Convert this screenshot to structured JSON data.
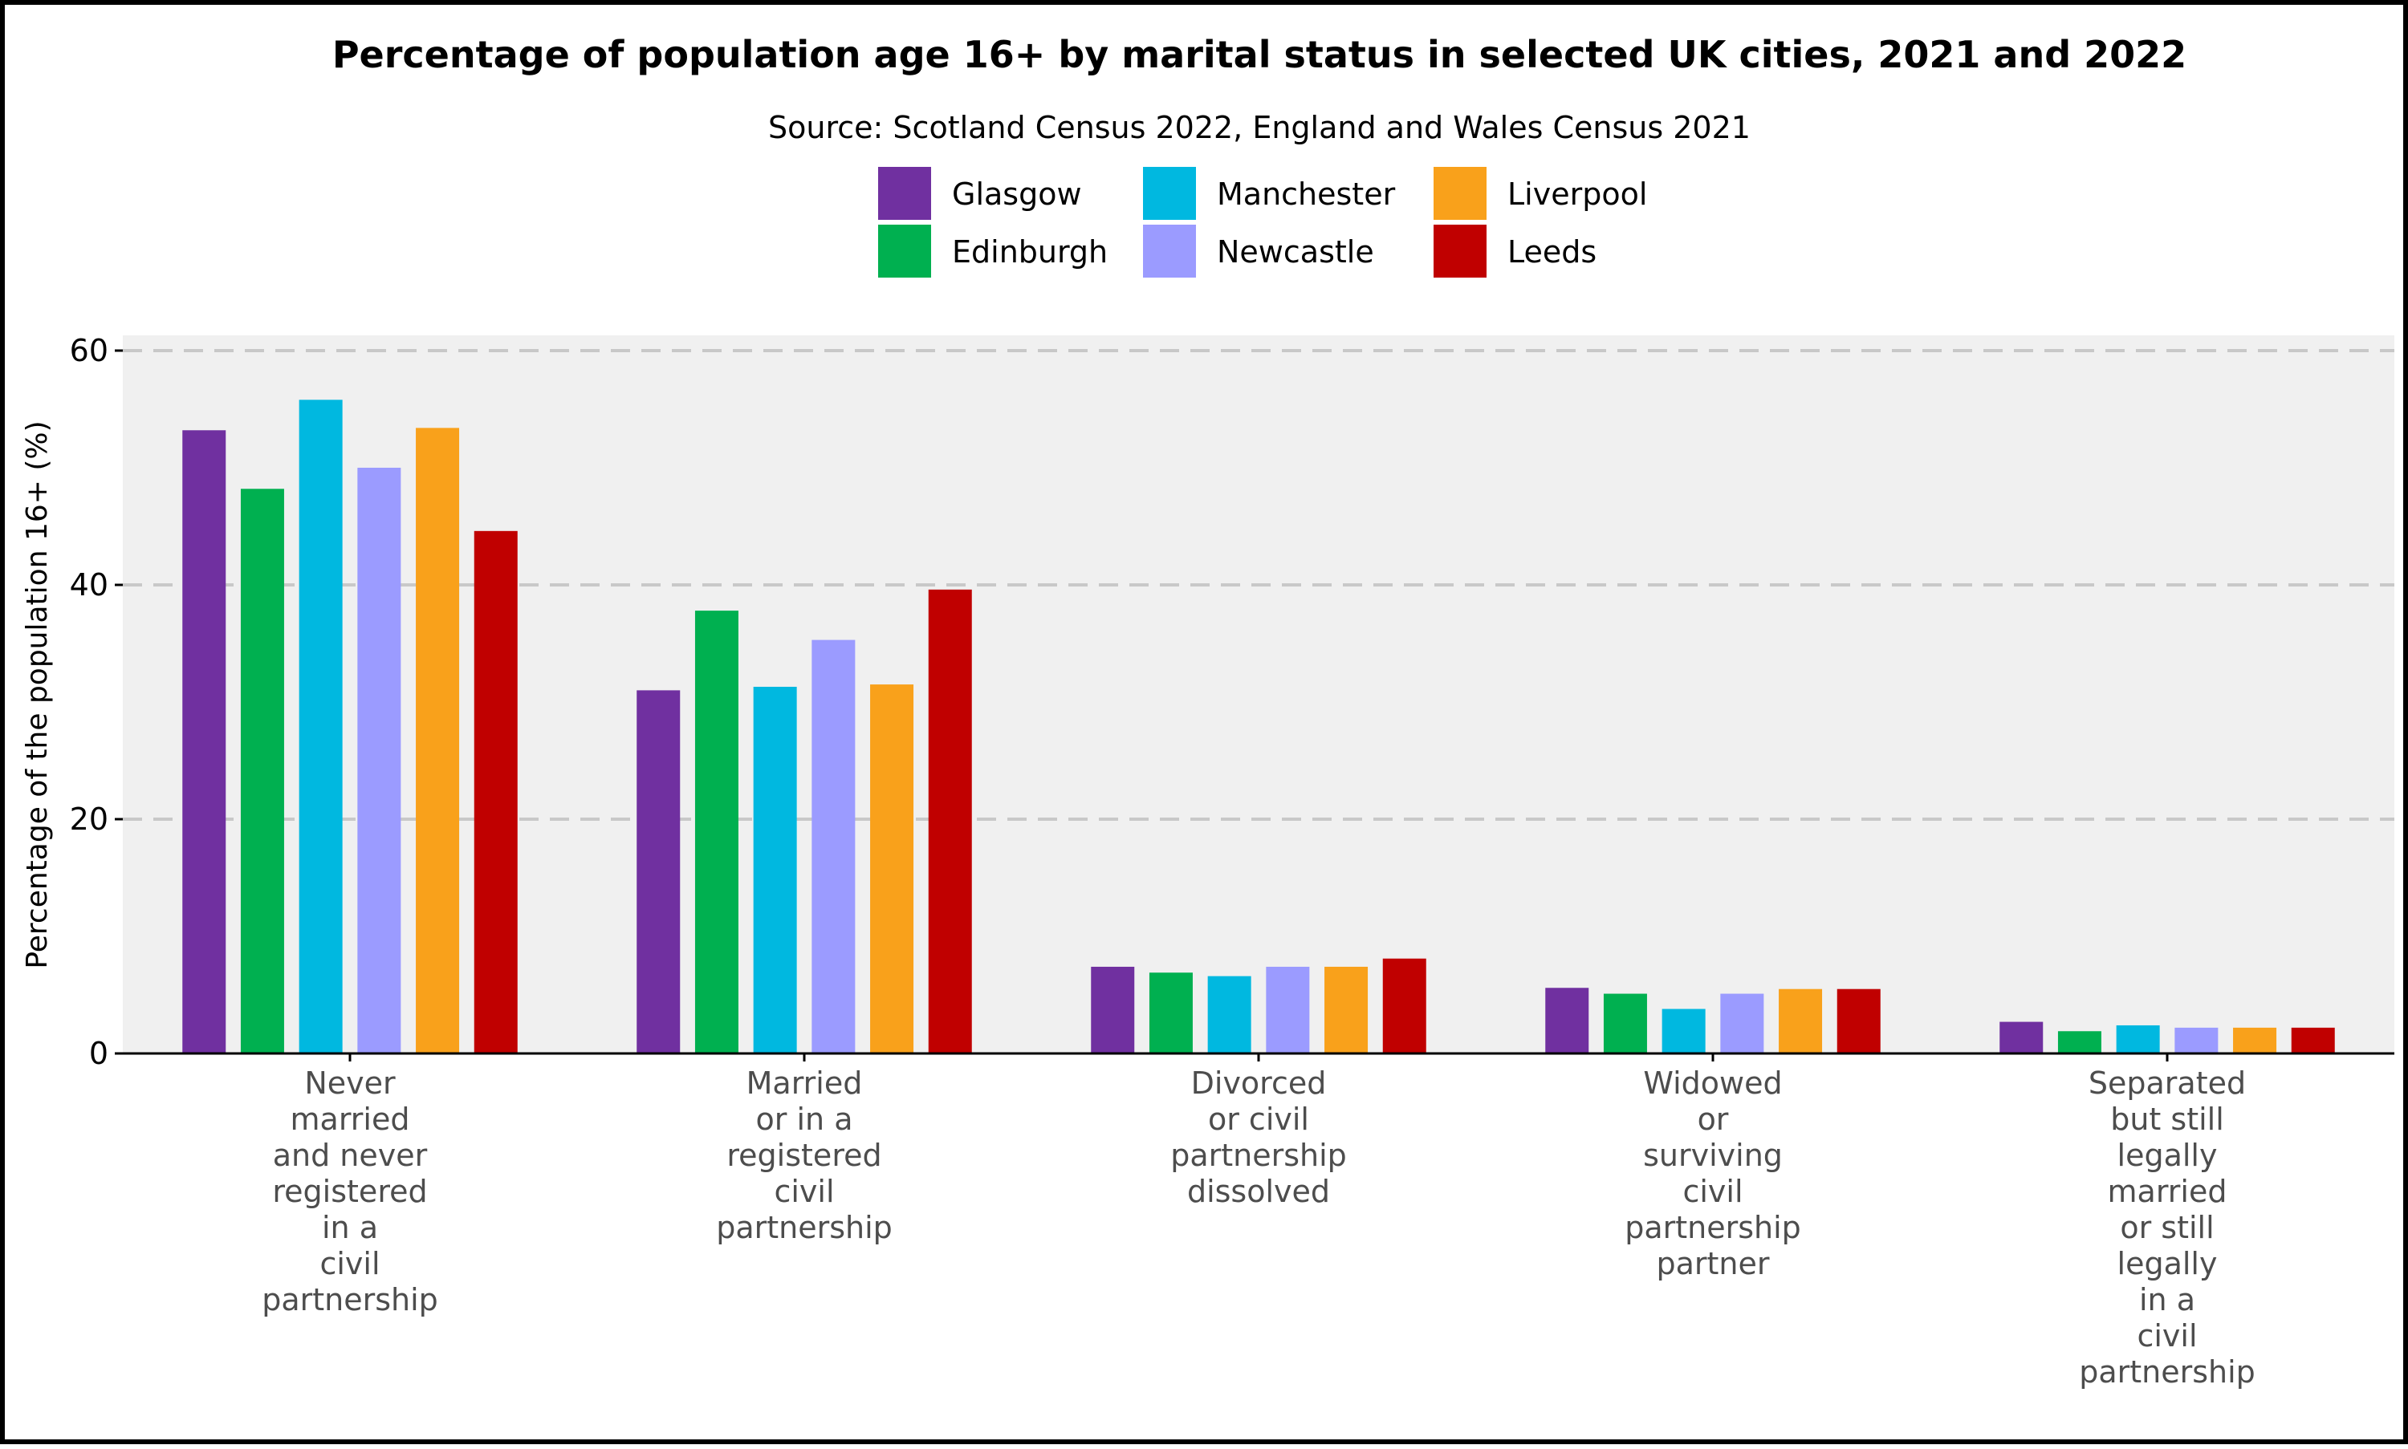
{
  "chart_data": {
    "type": "bar",
    "title": "Percentage of population age 16+ by marital status in selected UK cities, 2021 and 2022",
    "subtitle": "Source: Scotland Census 2022, England and Wales Census 2021",
    "xlabel": "",
    "ylabel": "Percentage of the population 16+ (%)",
    "ylim": [
      0,
      61.3
    ],
    "yticks": [
      0,
      20,
      40,
      60
    ],
    "grid": "horizontal dashed",
    "legend_position": "top",
    "categories": [
      [
        "Never",
        "married",
        "and never",
        "registered",
        "in a",
        "civil",
        "partnership"
      ],
      [
        "Married",
        "or in a",
        "registered",
        "civil",
        "partnership"
      ],
      [
        "Divorced",
        "or civil",
        "partnership",
        "dissolved"
      ],
      [
        "Widowed",
        "or",
        "surviving",
        "civil",
        "partnership",
        "partner"
      ],
      [
        "Separated",
        "but still",
        "legally",
        "married",
        "or still",
        "legally",
        "in a",
        "civil",
        "partnership"
      ]
    ],
    "series": [
      {
        "name": "Glasgow",
        "color": "#7030a0",
        "values": [
          53.2,
          31.0,
          7.4,
          5.6,
          2.7
        ]
      },
      {
        "name": "Edinburgh",
        "color": "#00b050",
        "values": [
          48.2,
          37.8,
          6.9,
          5.1,
          1.9
        ]
      },
      {
        "name": "Manchester",
        "color": "#00b8e0",
        "values": [
          55.8,
          31.3,
          6.6,
          3.8,
          2.4
        ]
      },
      {
        "name": "Newcastle",
        "color": "#9b9bff",
        "values": [
          50.0,
          35.3,
          7.4,
          5.1,
          2.2
        ]
      },
      {
        "name": "Liverpool",
        "color": "#f9a11b",
        "values": [
          53.4,
          31.5,
          7.4,
          5.5,
          2.2
        ]
      },
      {
        "name": "Leeds",
        "color": "#c00000",
        "values": [
          44.6,
          39.6,
          8.1,
          5.5,
          2.2
        ]
      }
    ]
  }
}
